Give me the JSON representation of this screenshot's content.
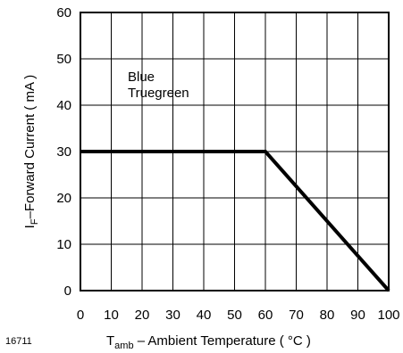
{
  "chart_data": {
    "type": "line",
    "xlabel": {
      "main": "T",
      "sub": "amb",
      "rest": " – Ambient Temperature ( °C )"
    },
    "ylabel": {
      "main": "I",
      "sub": "F",
      "rest": "–Forward Current ( mA )"
    },
    "xlim": [
      0,
      100
    ],
    "ylim": [
      0,
      60
    ],
    "xticks": [
      0,
      10,
      20,
      30,
      40,
      50,
      60,
      70,
      80,
      90,
      100
    ],
    "yticks": [
      0,
      10,
      20,
      30,
      40,
      50,
      60
    ],
    "grid": true,
    "series": [
      {
        "values_x": [
          0,
          60,
          100
        ],
        "values_y": [
          30,
          30,
          0
        ]
      }
    ],
    "annotations": [
      "Blue",
      "Truegreen"
    ]
  },
  "figure_id": "16711"
}
